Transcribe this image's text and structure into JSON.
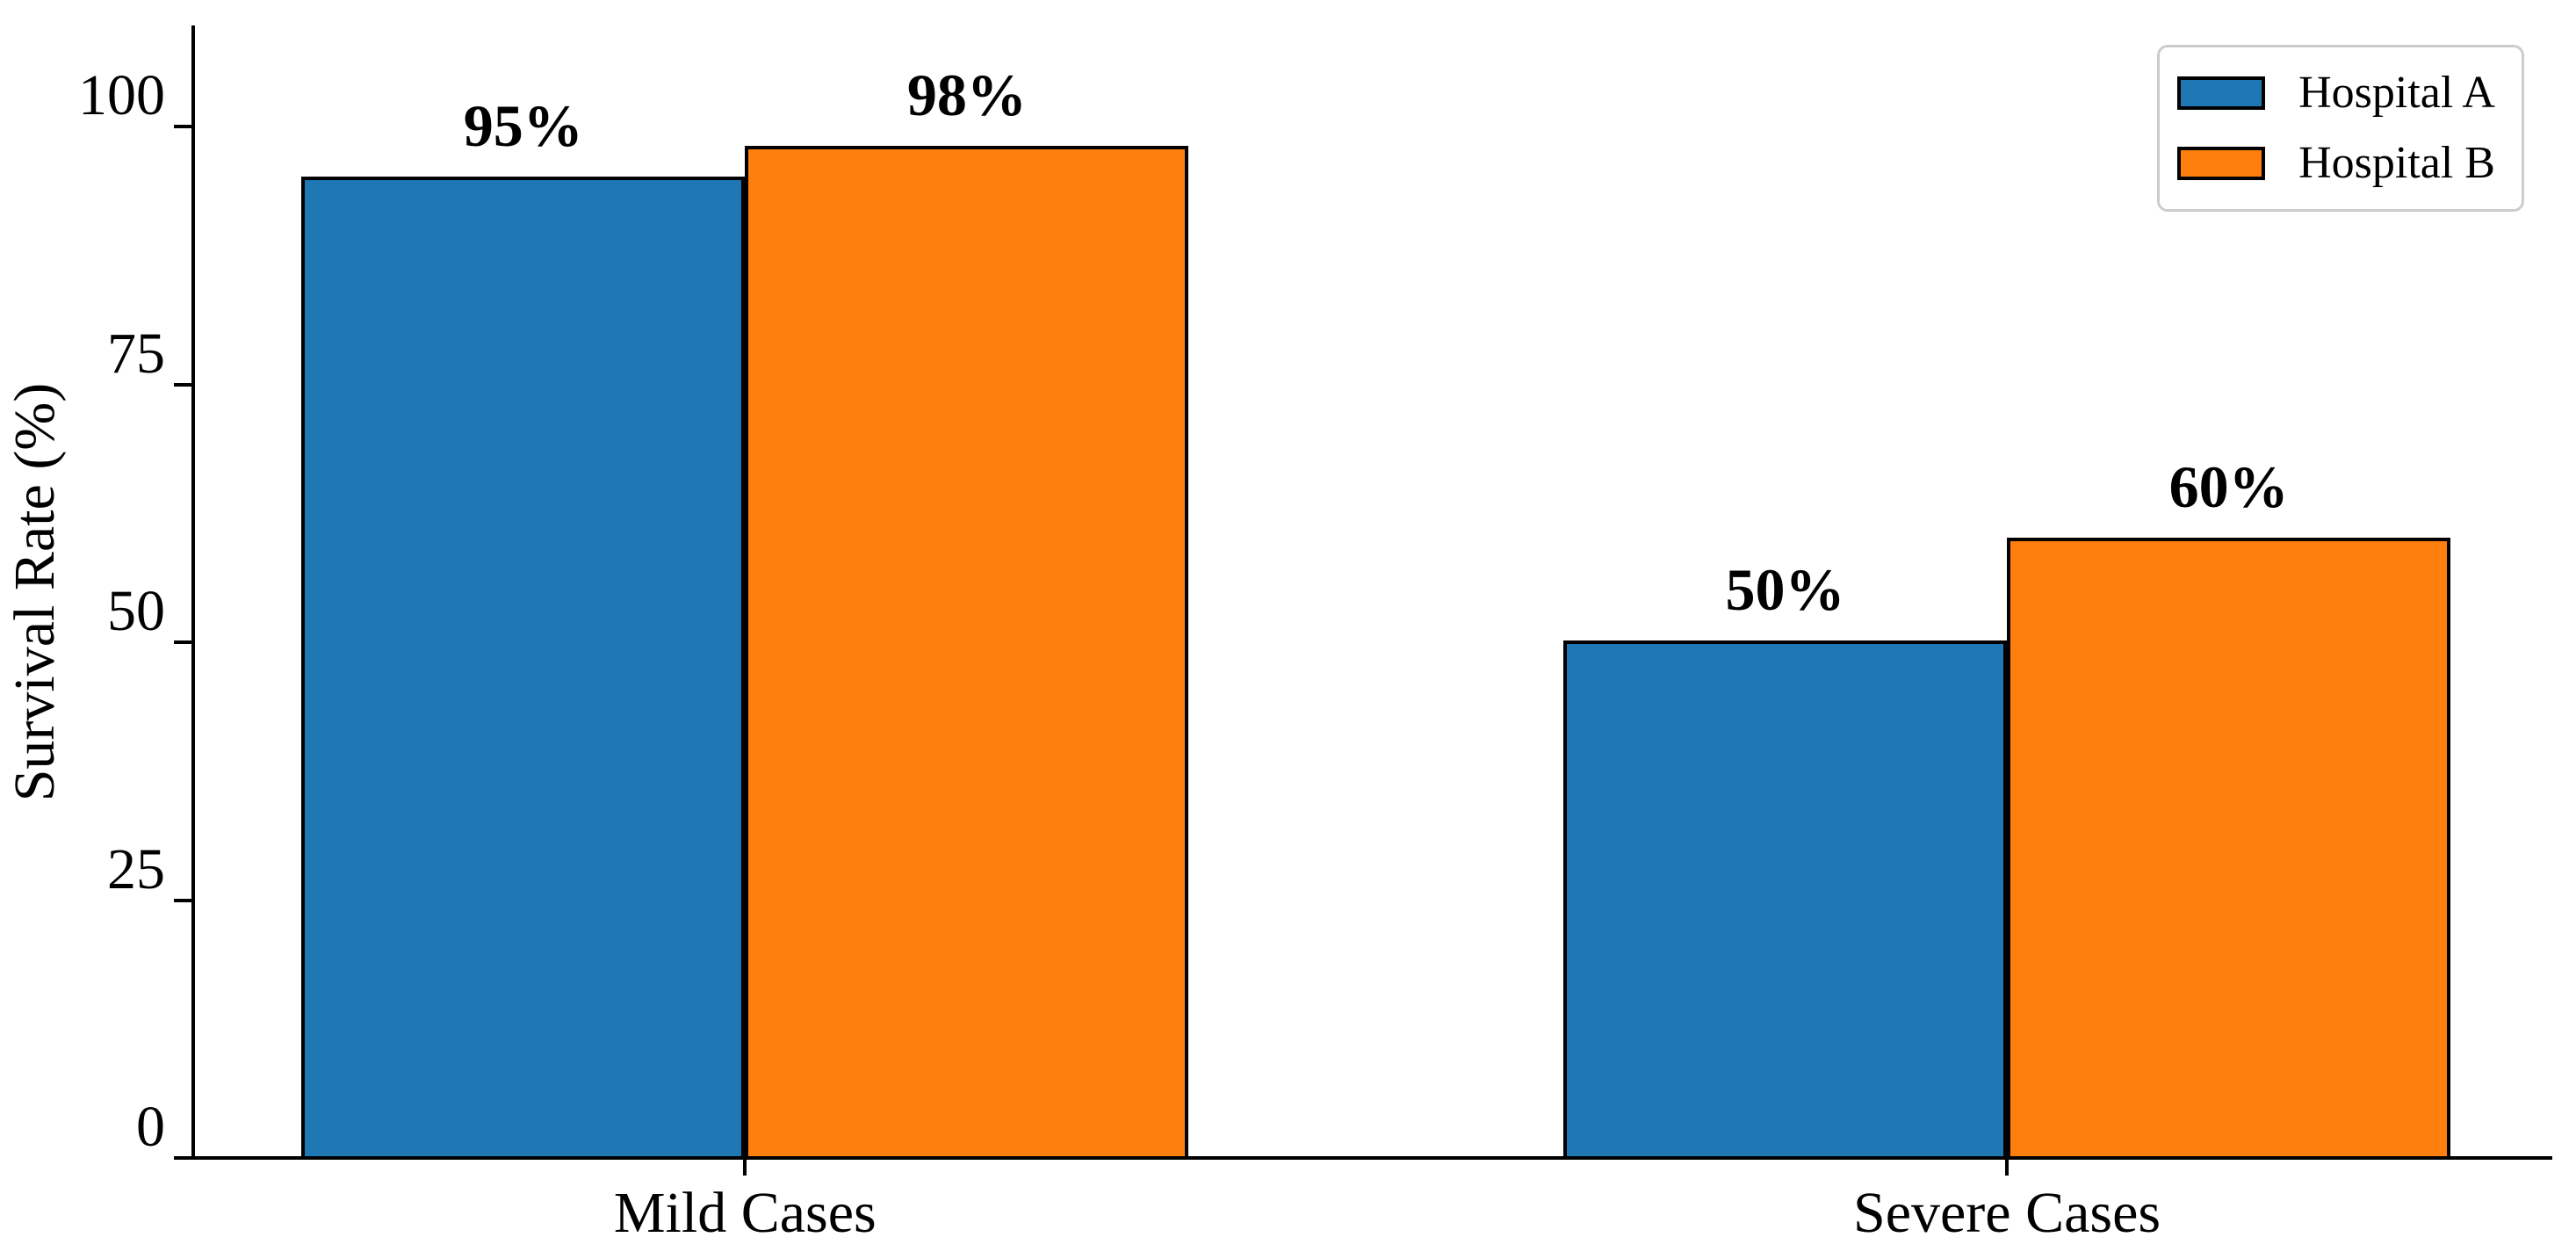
{
  "chart_data": {
    "type": "bar",
    "title": "",
    "xlabel": "",
    "ylabel": "Survival Rate (%)",
    "categories": [
      "Mild Cases",
      "Severe Cases"
    ],
    "series": [
      {
        "name": "Hospital A",
        "color": "#1f77b4",
        "values": [
          95,
          50
        ],
        "value_labels": [
          "95%",
          "50%"
        ]
      },
      {
        "name": "Hospital B",
        "color": "#ff7f0e",
        "values": [
          98,
          60
        ],
        "value_labels": [
          "98%",
          "60%"
        ]
      }
    ],
    "yticks": [
      0,
      25,
      50,
      75,
      100
    ],
    "ylim": [
      0,
      110
    ],
    "grid": false,
    "legend_position": "upper right",
    "bar_edge_color": "#000000",
    "group_centers_frac": [
      0.233,
      0.7675
    ],
    "bar_width_frac": 0.1879
  }
}
